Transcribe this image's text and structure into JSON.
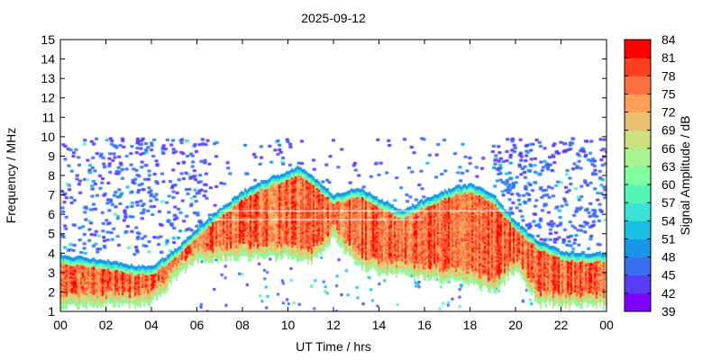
{
  "chart_data": {
    "type": "heatmap",
    "title": "2025-09-12",
    "xlabel": "UT Time / hrs",
    "ylabel": "Frequency / MHz",
    "colorbar_label": "Signal Amplitude / dB",
    "xlim": [
      0,
      24
    ],
    "ylim": [
      1,
      15
    ],
    "x_tick_labels": [
      "00",
      "02",
      "04",
      "06",
      "08",
      "10",
      "12",
      "14",
      "16",
      "18",
      "20",
      "22",
      "00"
    ],
    "y_tick_labels": [
      "1",
      "2",
      "3",
      "4",
      "5",
      "6",
      "7",
      "8",
      "9",
      "10",
      "11",
      "12",
      "13",
      "14",
      "15"
    ],
    "colorbar_levels": [
      39,
      42,
      45,
      48,
      51,
      54,
      57,
      60,
      63,
      66,
      69,
      72,
      75,
      78,
      81,
      84
    ],
    "colorbar_colors": [
      "#8000ff",
      "#5a3cf5",
      "#3a6ef0",
      "#1996e8",
      "#19bfe0",
      "#3ae3d5",
      "#55f5b8",
      "#80ffa0",
      "#a6f590",
      "#cce080",
      "#e8c070",
      "#ff9e58",
      "#ff7040",
      "#ff4020",
      "#ff0000"
    ],
    "echo_upper_edge_mhz": {
      "hours": [
        0,
        2,
        3,
        4,
        5,
        6,
        7,
        8,
        9,
        10,
        10.5,
        11,
        12,
        13,
        14,
        15,
        16,
        17,
        18,
        19,
        20,
        21,
        22,
        23,
        24
      ],
      "values": [
        3.9,
        3.6,
        3.4,
        3.3,
        4.2,
        5.3,
        6.3,
        7.2,
        7.8,
        8.2,
        8.5,
        8.0,
        7.0,
        7.4,
        6.8,
        6.2,
        6.8,
        7.3,
        7.6,
        7.0,
        5.6,
        4.6,
        4.1,
        4.0,
        4.0
      ]
    },
    "echo_lower_edge_mhz": {
      "hours": [
        0,
        3,
        4,
        5,
        6,
        8,
        10,
        11,
        12,
        13,
        14,
        16,
        18,
        19,
        20,
        21,
        22,
        24
      ],
      "values": [
        1.1,
        1.1,
        1.2,
        2.5,
        3.4,
        3.6,
        3.6,
        3.4,
        4.6,
        3.2,
        2.8,
        2.5,
        2.3,
        1.8,
        3.0,
        1.2,
        1.1,
        1.1
      ]
    },
    "grid": false
  }
}
